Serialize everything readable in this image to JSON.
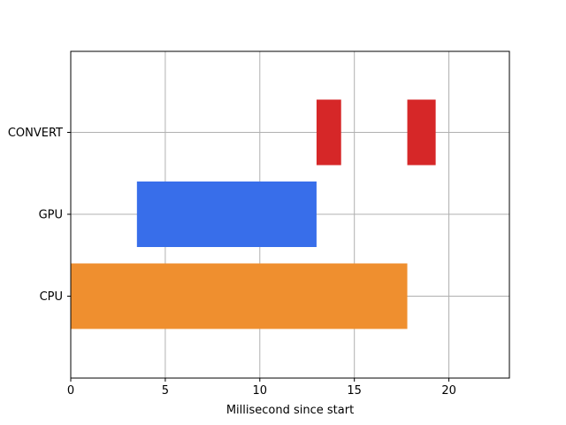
{
  "chart_data": {
    "type": "bar",
    "orientation": "horizontal",
    "subtype": "gantt",
    "title": "",
    "xlabel": "Millisecond since start",
    "ylabel": "",
    "xlim": [
      0,
      23.2
    ],
    "xticks": [
      0,
      5,
      10,
      15,
      20
    ],
    "categories": [
      "CPU",
      "GPU",
      "CONVERT"
    ],
    "grid": true,
    "segments": [
      {
        "category": "CPU",
        "start": 0,
        "end": 17.8,
        "color": "#ef8f2f"
      },
      {
        "category": "GPU",
        "start": 3.5,
        "end": 13.0,
        "color": "#386eea"
      },
      {
        "category": "CONVERT",
        "start": 13.0,
        "end": 14.3,
        "color": "#d62728"
      },
      {
        "category": "CONVERT",
        "start": 17.8,
        "end": 19.3,
        "color": "#d62728"
      }
    ]
  }
}
